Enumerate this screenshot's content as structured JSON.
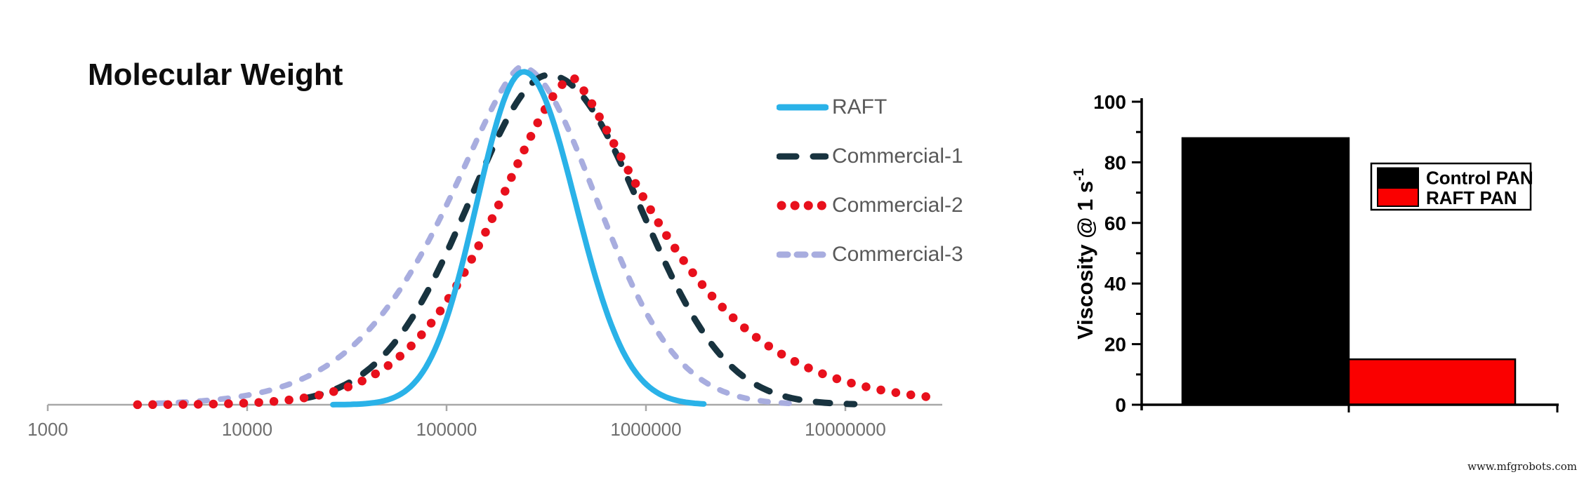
{
  "page": {
    "background": "#ffffff",
    "watermark": "www.mfgrobots.com"
  },
  "mw_chart": {
    "title": "Molecular Weight",
    "x_tick_labels": [
      "1000",
      "10000",
      "100000",
      "1000000",
      "10000000"
    ],
    "axis_color": "#a8a8a8",
    "tick_label_color": "#6f6f6f",
    "legend_text_color": "#595959"
  },
  "viscosity_chart": {
    "ylabel": {
      "text": "Viscosity @ 1 s",
      "sup": "-1"
    },
    "y_tick_labels": [
      "0",
      "20",
      "40",
      "60",
      "80",
      "100"
    ],
    "axis_color": "#000000",
    "legend_labels": [
      "Control PAN",
      "RAFT PAN"
    ]
  },
  "chart_data": [
    {
      "type": "line",
      "title": "Molecular Weight",
      "xscale": "log10",
      "xlabel": "",
      "ylabel": "",
      "x_ticks": [
        1000,
        10000,
        100000,
        1000000,
        10000000
      ],
      "x_range": [
        1000,
        30000000
      ],
      "y_range": [
        0,
        1.05
      ],
      "grid": false,
      "legend_position": "right",
      "series": [
        {
          "label": "RAFT",
          "color": "#2ab2e8",
          "line_style": "solid",
          "peak_mw": 244000,
          "peak_log10": 5.387,
          "height_norm": 0.985,
          "sigma_left_log10": 0.235,
          "sigma_right_log10": 0.26,
          "tail_power_left": 2.0,
          "tail_power_right": 2.0,
          "range_log10": [
            4.43,
            6.3
          ]
        },
        {
          "label": "Commercial-1",
          "color": "#18333f",
          "line_style": "dashed",
          "peak_mw": 321000,
          "peak_log10": 5.507,
          "height_norm": 0.975,
          "sigma_left_log10": 0.4,
          "sigma_right_log10": 0.46,
          "tail_power_left": 1.85,
          "tail_power_right": 2.1,
          "range_log10": [
            4.3,
            7.05
          ]
        },
        {
          "label": "Commercial-2",
          "color": "#e8101c",
          "line_style": "dotted",
          "peak_mw": 430000,
          "peak_log10": 5.633,
          "height_norm": 0.968,
          "sigma_left_log10": 0.375,
          "sigma_right_log10": 0.38,
          "tail_power_left": 1.6,
          "tail_power_right": 1.3,
          "range_log10": [
            3.45,
            7.42
          ]
        },
        {
          "label": "Commercial-3",
          "color": "#a8addf",
          "line_style": "dashed-short",
          "peak_mw": 236000,
          "peak_log10": 5.373,
          "height_norm": 1.0,
          "sigma_left_log10": 0.36,
          "sigma_right_log10": 0.38,
          "tail_power_left": 1.47,
          "tail_power_right": 1.9,
          "range_log10": [
            3.55,
            6.73
          ]
        }
      ]
    },
    {
      "type": "bar",
      "categories": [
        "Control PAN",
        "RAFT PAN"
      ],
      "values": [
        88,
        15
      ],
      "colors": [
        "#000000",
        "#fa0000"
      ],
      "bar_edge_colors": [
        "#000000",
        "#000000"
      ],
      "ylabel": "Viscosity @ 1 s⁻¹",
      "xlabel": "",
      "ylim": [
        0,
        100
      ],
      "y_major_ticks": [
        0,
        20,
        40,
        60,
        80,
        100
      ],
      "y_minor_ticks": [
        10,
        30,
        50,
        70,
        90
      ],
      "grid": false,
      "legend_position": "upper-right"
    }
  ]
}
